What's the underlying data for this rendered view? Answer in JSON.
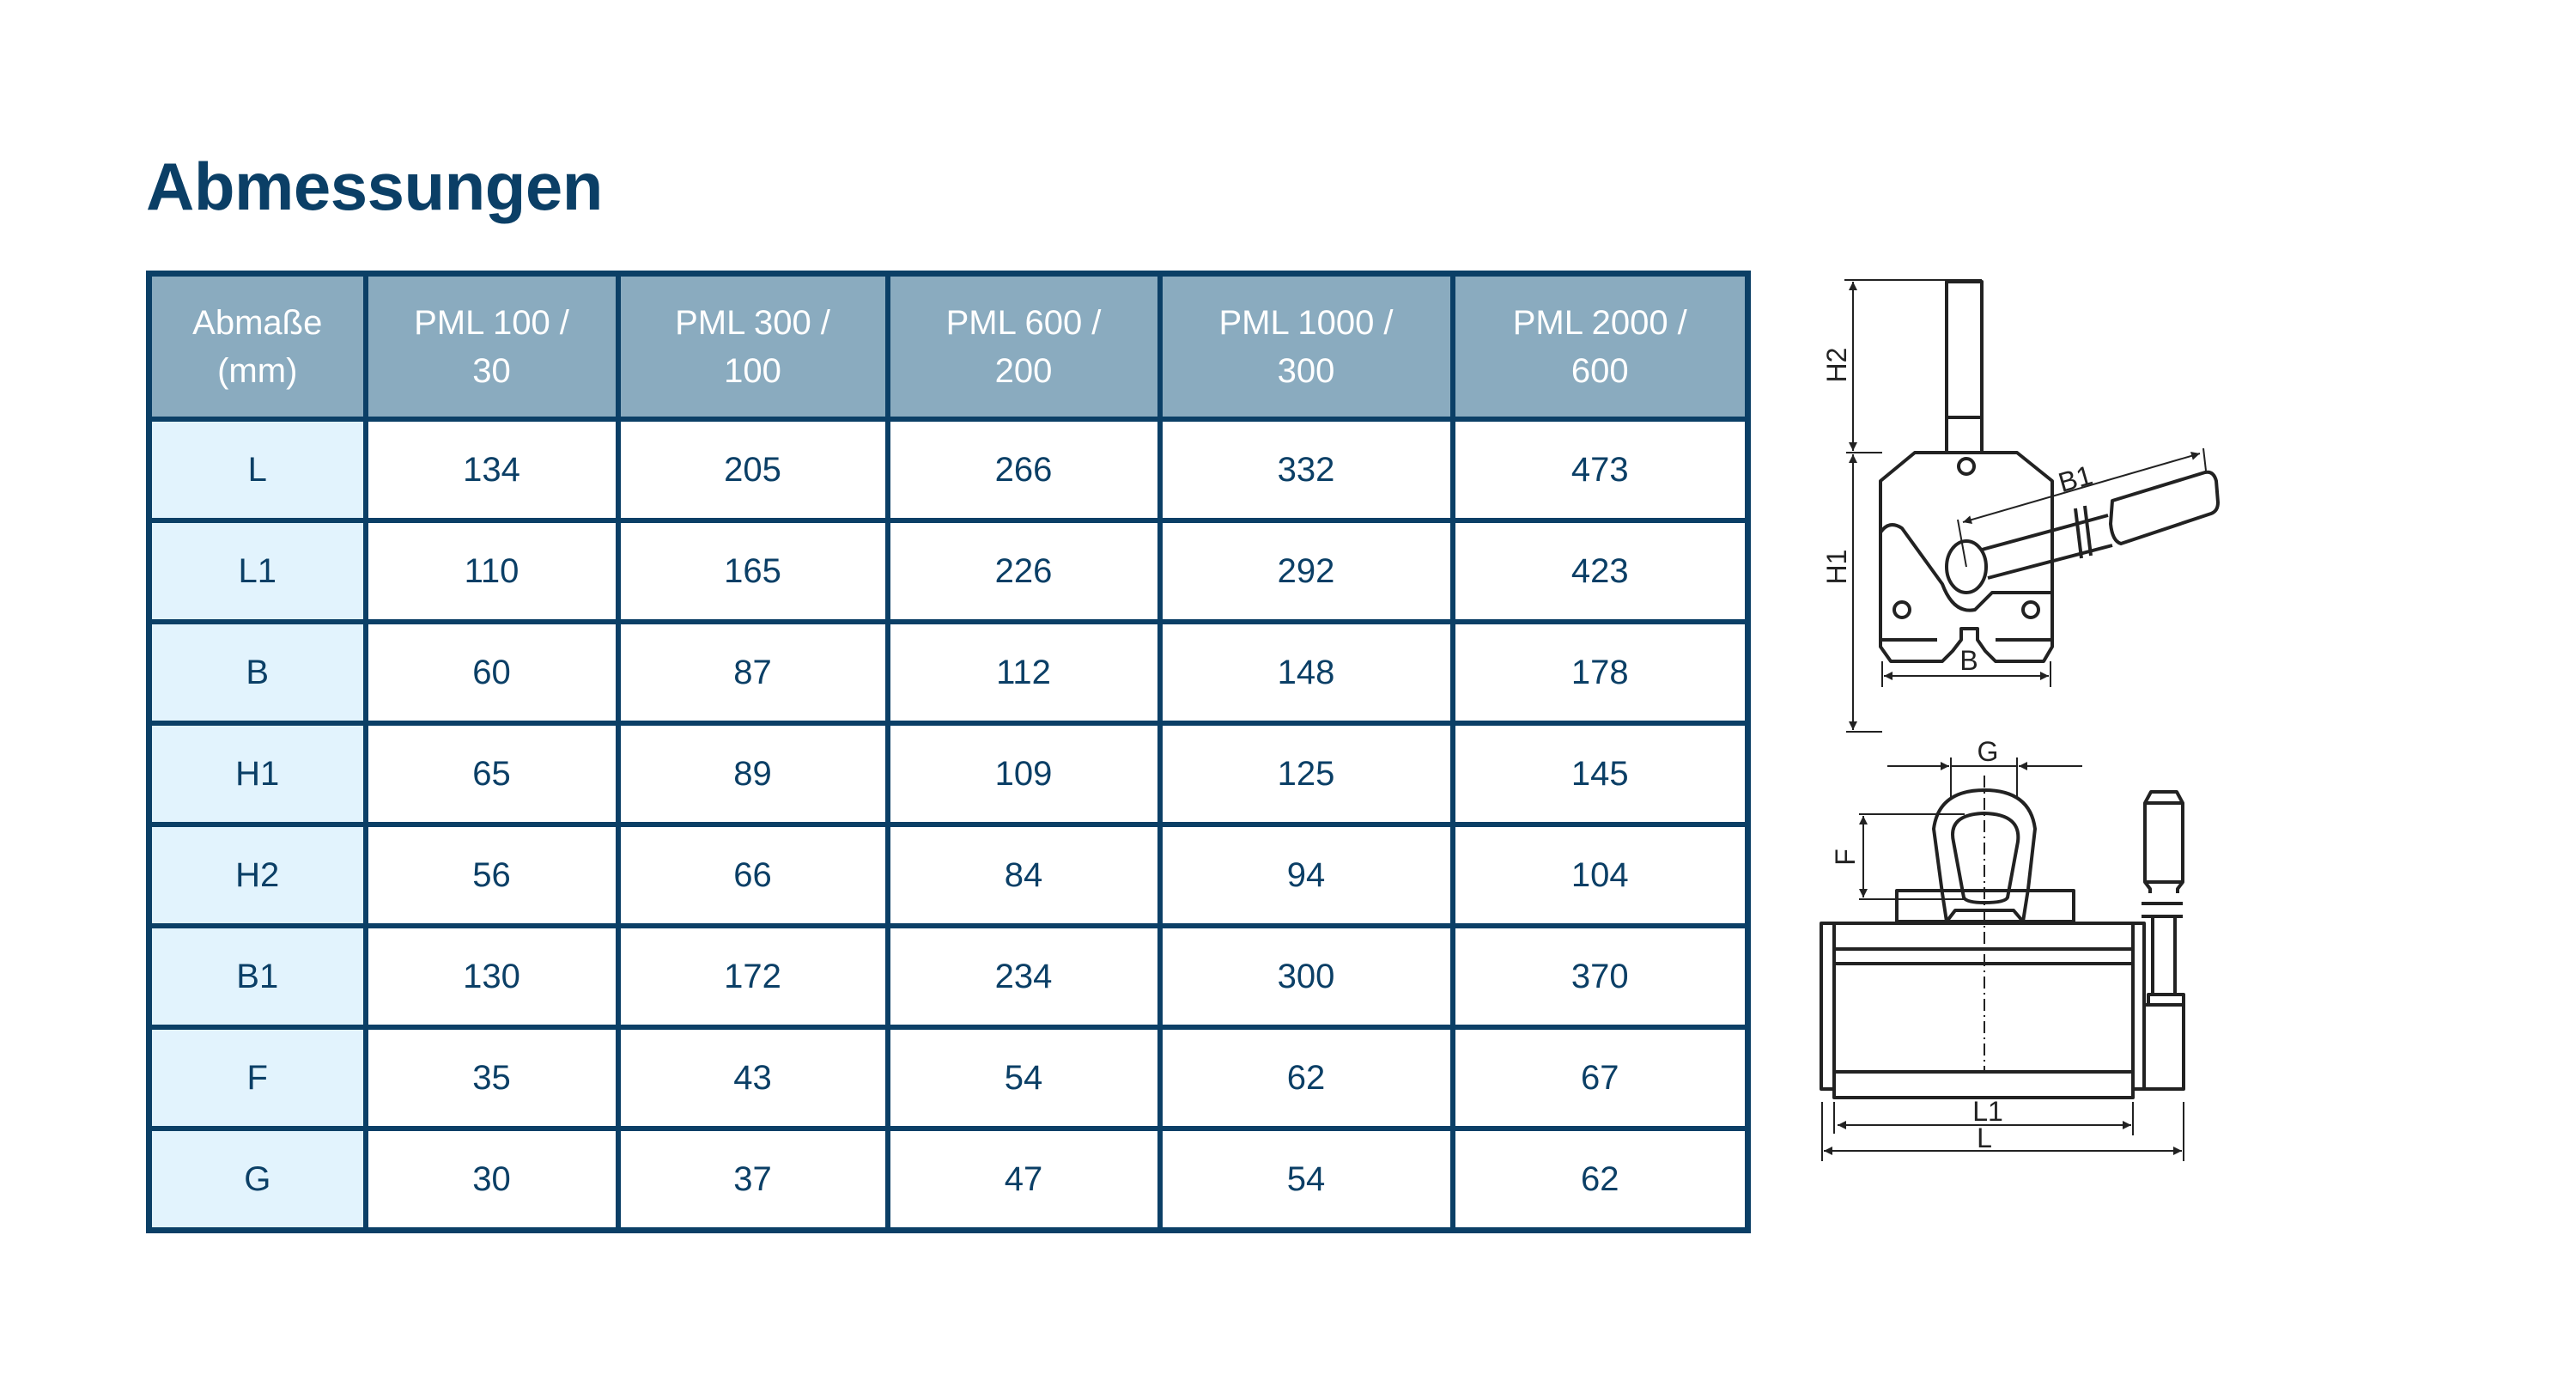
{
  "title": "Abmessungen",
  "table": {
    "corner": [
      "Abmaße",
      "(mm)"
    ],
    "columns": [
      [
        "PML 100 /",
        "30"
      ],
      [
        "PML 300 /",
        "100"
      ],
      [
        "PML 600 /",
        "200"
      ],
      [
        "PML 1000 /",
        "300"
      ],
      [
        "PML 2000 /",
        "600"
      ]
    ],
    "rows": [
      {
        "label": "L",
        "values": [
          "134",
          "205",
          "266",
          "332",
          "473"
        ]
      },
      {
        "label": "L1",
        "values": [
          "110",
          "165",
          "226",
          "292",
          "423"
        ]
      },
      {
        "label": "B",
        "values": [
          "60",
          "87",
          "112",
          "148",
          "178"
        ]
      },
      {
        "label": "H1",
        "values": [
          "65",
          "89",
          "109",
          "125",
          "145"
        ]
      },
      {
        "label": "H2",
        "values": [
          "56",
          "66",
          "84",
          "94",
          "104"
        ]
      },
      {
        "label": "B1",
        "values": [
          "130",
          "172",
          "234",
          "300",
          "370"
        ]
      },
      {
        "label": "F",
        "values": [
          "35",
          "43",
          "54",
          "62",
          "67"
        ]
      },
      {
        "label": "G",
        "values": [
          "30",
          "37",
          "47",
          "54",
          "62"
        ]
      }
    ]
  },
  "drawing": {
    "labels": {
      "H2": "H2",
      "H1": "H1",
      "B": "B",
      "B1": "B1",
      "G": "G",
      "F": "F",
      "L1": "L1",
      "L": "L"
    }
  },
  "colors": {
    "primary": "#0b3f66",
    "header_bg": "#8aabbf",
    "rowhead_bg": "#e2f3fd"
  }
}
